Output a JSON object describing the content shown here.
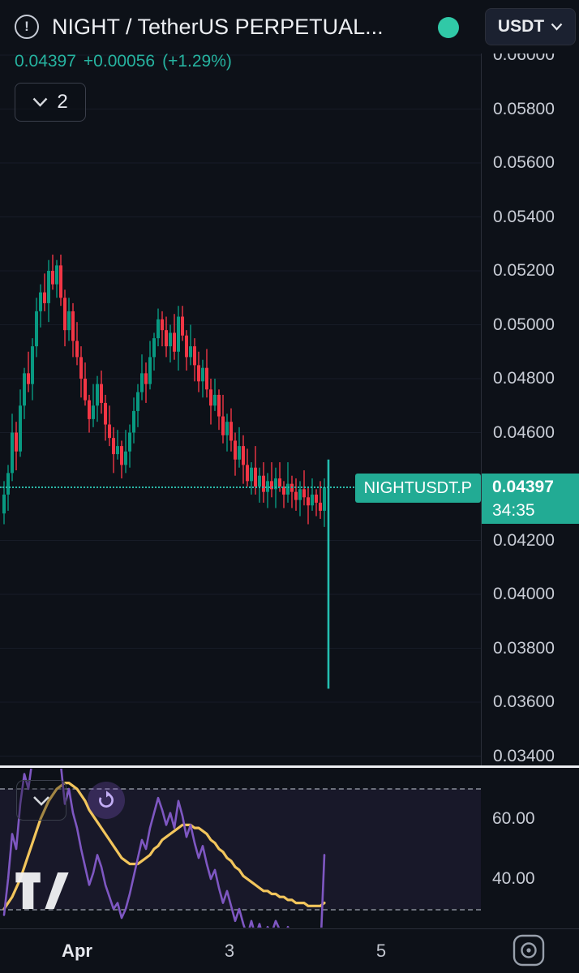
{
  "header": {
    "title": "NIGHT / TetherUS PERPETUAL...",
    "currency": "USDT",
    "timeframe": "2",
    "market_status": "open"
  },
  "price_row": {
    "price": "0.04397",
    "change": "+0.00056",
    "change_pct": "(+1.29%)"
  },
  "price_label": {
    "symbol": "NIGHTUSDT.P",
    "price": "0.04397",
    "countdown": "34:35"
  },
  "price_scale": {
    "ticks": [
      "0.06000",
      "0.05800",
      "0.05600",
      "0.05400",
      "0.05200",
      "0.05000",
      "0.04800",
      "0.04600",
      "0.04200",
      "0.04000",
      "0.03800",
      "0.03600",
      "0.03400"
    ]
  },
  "pane_scale": {
    "ticks": [
      "60.00",
      "40.00"
    ]
  },
  "time_axis": {
    "labels": [
      {
        "text": "Apr",
        "emphasis": true
      },
      {
        "text": "3",
        "emphasis": false
      },
      {
        "text": "5",
        "emphasis": false
      }
    ]
  },
  "colors": {
    "up": "#089981",
    "down": "#f23645",
    "accent_teal": "#22ab94",
    "price_text": "#26b3a0",
    "rsi": "#7e57c2",
    "rsi_ma": "#f2c55c",
    "spike": "#23beb0",
    "dashed": "#6b6f7b",
    "grid": "#171c27"
  },
  "chart_data": [
    {
      "type": "candlestick",
      "symbol": "NIGHTUSDT.P",
      "current_price": 0.04397,
      "ylim": [
        0.0335,
        0.0605
      ],
      "o": [
        0.043,
        0.0437,
        0.0445,
        0.046,
        0.0453,
        0.047,
        0.0482,
        0.0478,
        0.0492,
        0.0505,
        0.0512,
        0.0508,
        0.052,
        0.0515,
        0.0522,
        0.051,
        0.0498,
        0.0505,
        0.0494,
        0.0488,
        0.048,
        0.0472,
        0.0465,
        0.047,
        0.0478,
        0.0471,
        0.0463,
        0.0458,
        0.0452,
        0.0455,
        0.0448,
        0.0453,
        0.046,
        0.0468,
        0.0475,
        0.0482,
        0.0478,
        0.0488,
        0.0495,
        0.0502,
        0.0498,
        0.0492,
        0.0497,
        0.049,
        0.0503,
        0.0496,
        0.0488,
        0.0492,
        0.0485,
        0.0479,
        0.0484,
        0.0476,
        0.047,
        0.0474,
        0.0466,
        0.0459,
        0.0464,
        0.0457,
        0.045,
        0.0455,
        0.0448,
        0.0442,
        0.0447,
        0.044,
        0.0444,
        0.0438,
        0.0442,
        0.0439,
        0.0443,
        0.044,
        0.0437,
        0.0441,
        0.0438,
        0.0435,
        0.0439,
        0.0436,
        0.0433,
        0.0437,
        0.0434,
        0.0431
      ],
      "h": [
        0.0442,
        0.0448,
        0.0467,
        0.0464,
        0.0476,
        0.0484,
        0.049,
        0.0495,
        0.051,
        0.0515,
        0.0519,
        0.0524,
        0.0526,
        0.0524,
        0.0526,
        0.0513,
        0.051,
        0.0508,
        0.0501,
        0.0492,
        0.0486,
        0.0474,
        0.0478,
        0.0481,
        0.0483,
        0.0474,
        0.047,
        0.0462,
        0.0461,
        0.0457,
        0.0461,
        0.0463,
        0.0473,
        0.0478,
        0.0489,
        0.0486,
        0.0494,
        0.0497,
        0.0506,
        0.0505,
        0.0503,
        0.05,
        0.0504,
        0.0507,
        0.0507,
        0.0498,
        0.05,
        0.0495,
        0.049,
        0.0487,
        0.0491,
        0.048,
        0.048,
        0.0476,
        0.0474,
        0.0467,
        0.0469,
        0.046,
        0.0462,
        0.0459,
        0.0454,
        0.0449,
        0.0455,
        0.0447,
        0.0449,
        0.0445,
        0.0449,
        0.0447,
        0.0449,
        0.0442,
        0.0449,
        0.0444,
        0.0443,
        0.0442,
        0.0446,
        0.044,
        0.0443,
        0.0439,
        0.0442,
        0.0443
      ],
      "l": [
        0.0426,
        0.0431,
        0.0442,
        0.0446,
        0.0451,
        0.0465,
        0.0475,
        0.0472,
        0.0488,
        0.0499,
        0.0505,
        0.0501,
        0.0513,
        0.051,
        0.0507,
        0.0492,
        0.0494,
        0.0488,
        0.0485,
        0.0473,
        0.047,
        0.046,
        0.0462,
        0.0464,
        0.0467,
        0.0457,
        0.0455,
        0.0445,
        0.045,
        0.0443,
        0.0445,
        0.0447,
        0.0456,
        0.0462,
        0.0472,
        0.0471,
        0.0476,
        0.0483,
        0.0492,
        0.0492,
        0.0488,
        0.0486,
        0.0487,
        0.0483,
        0.0494,
        0.0483,
        0.0485,
        0.0479,
        0.0475,
        0.0473,
        0.0473,
        0.0463,
        0.0468,
        0.0461,
        0.0456,
        0.0453,
        0.0453,
        0.0444,
        0.0447,
        0.0441,
        0.044,
        0.0437,
        0.0437,
        0.0434,
        0.0434,
        0.0432,
        0.0436,
        0.0432,
        0.0438,
        0.0432,
        0.0434,
        0.0432,
        0.0431,
        0.0429,
        0.0433,
        0.0426,
        0.0431,
        0.0429,
        0.0428,
        0.0425
      ],
      "c": [
        0.0437,
        0.0445,
        0.046,
        0.0453,
        0.047,
        0.0482,
        0.0478,
        0.0492,
        0.0505,
        0.0512,
        0.0508,
        0.052,
        0.0515,
        0.0522,
        0.051,
        0.0498,
        0.0505,
        0.0494,
        0.0488,
        0.048,
        0.0472,
        0.0465,
        0.047,
        0.0478,
        0.0471,
        0.0463,
        0.0458,
        0.0452,
        0.0455,
        0.0448,
        0.0453,
        0.046,
        0.0468,
        0.0475,
        0.0482,
        0.0478,
        0.0488,
        0.0495,
        0.0502,
        0.0498,
        0.0492,
        0.0497,
        0.049,
        0.0503,
        0.0496,
        0.0488,
        0.0492,
        0.0485,
        0.0479,
        0.0484,
        0.0476,
        0.047,
        0.0474,
        0.0466,
        0.0459,
        0.0464,
        0.0457,
        0.045,
        0.0455,
        0.0448,
        0.0442,
        0.0447,
        0.044,
        0.0444,
        0.0438,
        0.0442,
        0.0439,
        0.0443,
        0.044,
        0.0437,
        0.0441,
        0.0438,
        0.0435,
        0.0439,
        0.0436,
        0.0433,
        0.0437,
        0.0434,
        0.0431,
        0.04397
      ],
      "spike": {
        "high": 0.045,
        "low": 0.0365
      }
    },
    {
      "type": "line",
      "name": "RSI",
      "bands": {
        "upper": 70,
        "lower": 30
      },
      "ticks": [
        60,
        40
      ],
      "series": [
        {
          "name": "RSI MA",
          "color_key": "rsi_ma",
          "values": [
            30,
            32,
            34,
            37,
            40,
            44,
            48,
            52,
            56,
            60,
            63,
            66,
            68,
            70,
            71,
            72,
            72,
            71,
            70,
            68,
            66,
            63,
            61,
            59,
            57,
            55,
            53,
            51,
            49,
            47,
            46,
            45,
            45,
            45,
            46,
            47,
            48,
            50,
            51,
            53,
            54,
            55,
            56,
            57,
            58,
            58,
            58,
            57,
            57,
            56,
            55,
            53,
            52,
            50,
            49,
            47,
            46,
            44,
            43,
            41,
            40,
            39,
            38,
            37,
            36,
            36,
            35,
            35,
            34,
            34,
            33,
            33,
            32,
            32,
            32,
            31,
            31,
            31,
            31,
            32
          ]
        },
        {
          "name": "RSI",
          "color_key": "rsi",
          "values": [
            28,
            40,
            55,
            50,
            65,
            75,
            70,
            80,
            86,
            88,
            84,
            88,
            85,
            87,
            78,
            65,
            70,
            62,
            57,
            50,
            44,
            38,
            42,
            48,
            44,
            38,
            34,
            30,
            32,
            27,
            30,
            35,
            41,
            47,
            53,
            50,
            57,
            62,
            67,
            63,
            58,
            62,
            57,
            66,
            61,
            54,
            58,
            52,
            47,
            51,
            45,
            40,
            43,
            37,
            32,
            36,
            31,
            26,
            30,
            25,
            21,
            26,
            21,
            25,
            20,
            24,
            22,
            26,
            23,
            20,
            24,
            21,
            18,
            22,
            19,
            16,
            21,
            18,
            15,
            48
          ]
        }
      ]
    }
  ]
}
